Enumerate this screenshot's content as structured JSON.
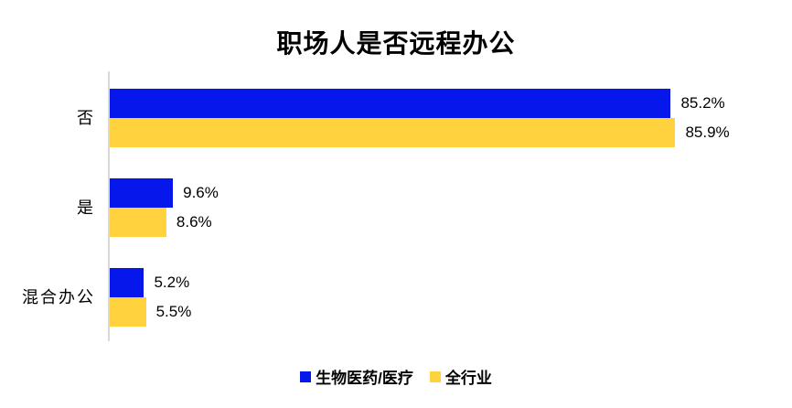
{
  "chart_data": {
    "type": "bar",
    "orientation": "horizontal",
    "title": "职场人是否远程办公",
    "categories": [
      "否",
      "是",
      "混合办公"
    ],
    "series": [
      {
        "name": "生物医药/医疗",
        "color": "#0617ec",
        "values": [
          85.2,
          9.6,
          5.2
        ]
      },
      {
        "name": "全行业",
        "color": "#ffd23e",
        "values": [
          85.9,
          8.6,
          5.5
        ]
      }
    ],
    "value_labels": [
      [
        "85.2%",
        "9.6%",
        "5.2%"
      ],
      [
        "85.9%",
        "8.6%",
        "5.5%"
      ]
    ],
    "xlabel": "",
    "ylabel": "",
    "xlim": [
      0,
      100
    ],
    "value_suffix": "%",
    "grid": false,
    "axis_color": "#d8d8d8",
    "background_color": "#ffffff",
    "legend_position": "bottom"
  }
}
